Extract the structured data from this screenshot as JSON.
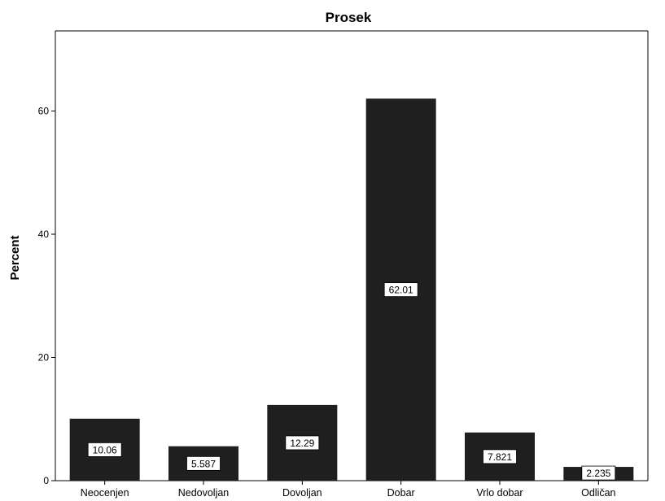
{
  "chart_data": {
    "type": "bar",
    "title": "Prosek",
    "xlabel": "",
    "ylabel": "Percent",
    "categories": [
      "Neocenjen",
      "Nedovoljan",
      "Dovoljan",
      "Dobar",
      "Vrlo dobar",
      "Odličan"
    ],
    "values": [
      10.06,
      5.587,
      12.29,
      62.01,
      7.821,
      2.235
    ],
    "data_labels": [
      "10.06",
      "5.587",
      "12.29",
      "62.01",
      "7.821",
      "2.235"
    ],
    "yticks": [
      0,
      20,
      40,
      60
    ],
    "ytick_labels": [
      "0",
      "20",
      "40",
      "60"
    ],
    "ylim": [
      0,
      73
    ],
    "grid": false,
    "bar_color": "#1f1f1f",
    "data_label_bg": "#ffffff",
    "axis_color": "#000000"
  }
}
